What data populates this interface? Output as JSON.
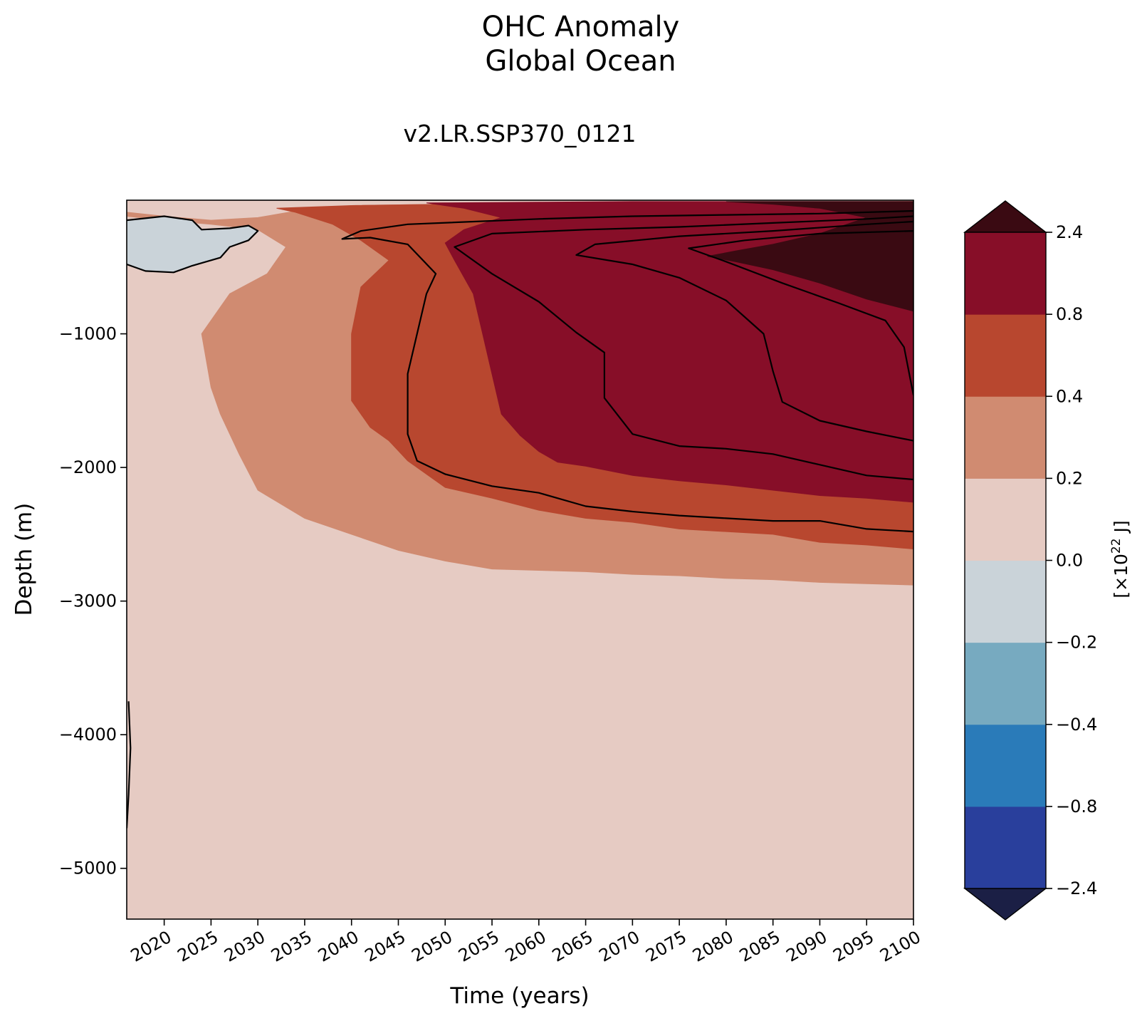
{
  "chart_data": {
    "type": "heatmap",
    "title": "OHC Anomaly",
    "title_line2": "Global Ocean",
    "subtitle": "v2.LR.SSP370_0121",
    "xlabel": "Time (years)",
    "ylabel": "Depth (m)",
    "xlim": [
      2016,
      2100
    ],
    "ylim": [
      -5380,
      0
    ],
    "x_ticks": [
      2020,
      2025,
      2030,
      2035,
      2040,
      2045,
      2050,
      2055,
      2060,
      2065,
      2070,
      2075,
      2080,
      2085,
      2090,
      2095,
      2100
    ],
    "y_ticks": [
      -1000,
      -2000,
      -3000,
      -4000,
      -5000
    ],
    "colorbar": {
      "label": "[×10",
      "label_exp": "22",
      "label_unit": " J]",
      "levels": [
        -2.4,
        -0.8,
        -0.4,
        -0.2,
        0.0,
        0.2,
        0.4,
        0.8,
        2.4
      ],
      "tick_labels": [
        "2.4",
        "0.8",
        "0.4",
        "0.2",
        "0.0",
        "−0.2",
        "−0.4",
        "−0.8",
        "−2.4"
      ],
      "colors": [
        "#1b1f45",
        "#293f9c",
        "#2a7bb9",
        "#77aac0",
        "#cad3d9",
        "#e6cbc3",
        "#d08b71",
        "#b8472f",
        "#870e28",
        "#3a0a12"
      ],
      "extend": "both"
    },
    "contour_levels": [
      0.0,
      0.8,
      2.4
    ],
    "regions": [
      {
        "level": "0.0 to 0.2",
        "color": "#e6cbc3",
        "boundary": [
          [
            2016,
            0
          ],
          [
            2100,
            0
          ],
          [
            2100,
            -5380
          ],
          [
            2016,
            -5380
          ]
        ]
      },
      {
        "level": "0.2 to 0.4",
        "color": "#d08b71",
        "boundary": [
          [
            2016,
            -90
          ],
          [
            2020,
            -120
          ],
          [
            2025,
            -150
          ],
          [
            2030,
            -130
          ],
          [
            2035,
            -70
          ],
          [
            2040,
            -40
          ],
          [
            2050,
            -30
          ],
          [
            2060,
            -20
          ],
          [
            2070,
            -20
          ],
          [
            2100,
            -10
          ],
          [
            2100,
            -2880
          ],
          [
            2095,
            -2870
          ],
          [
            2090,
            -2860
          ],
          [
            2085,
            -2840
          ],
          [
            2080,
            -2830
          ],
          [
            2075,
            -2810
          ],
          [
            2070,
            -2800
          ],
          [
            2065,
            -2780
          ],
          [
            2060,
            -2770
          ],
          [
            2055,
            -2760
          ],
          [
            2050,
            -2700
          ],
          [
            2045,
            -2620
          ],
          [
            2040,
            -2500
          ],
          [
            2035,
            -2380
          ],
          [
            2030,
            -2170
          ],
          [
            2028,
            -1900
          ],
          [
            2026,
            -1600
          ],
          [
            2025,
            -1400
          ],
          [
            2024,
            -1000
          ],
          [
            2027,
            -700
          ],
          [
            2031,
            -550
          ],
          [
            2033,
            -350
          ],
          [
            2030,
            -220
          ],
          [
            2025,
            -180
          ],
          [
            2020,
            -150
          ],
          [
            2016,
            -120
          ]
        ]
      },
      {
        "level": "0.4 to 0.8",
        "color": "#b8472f",
        "boundary": [
          [
            2032,
            -60
          ],
          [
            2040,
            -40
          ],
          [
            2050,
            -30
          ],
          [
            2060,
            -20
          ],
          [
            2070,
            -15
          ],
          [
            2100,
            -10
          ],
          [
            2100,
            -2610
          ],
          [
            2095,
            -2580
          ],
          [
            2090,
            -2560
          ],
          [
            2085,
            -2500
          ],
          [
            2080,
            -2480
          ],
          [
            2075,
            -2460
          ],
          [
            2070,
            -2410
          ],
          [
            2065,
            -2380
          ],
          [
            2060,
            -2320
          ],
          [
            2055,
            -2230
          ],
          [
            2050,
            -2150
          ],
          [
            2046,
            -1950
          ],
          [
            2044,
            -1800
          ],
          [
            2042,
            -1700
          ],
          [
            2040,
            -1500
          ],
          [
            2040,
            -1000
          ],
          [
            2041,
            -650
          ],
          [
            2044,
            -450
          ],
          [
            2041,
            -300
          ],
          [
            2038,
            -180
          ],
          [
            2034,
            -90
          ]
        ]
      },
      {
        "level": "0.8 to 2.4",
        "color": "#870e28",
        "boundary": [
          [
            2048,
            -20
          ],
          [
            2060,
            -15
          ],
          [
            2070,
            -10
          ],
          [
            2100,
            -10
          ],
          [
            2100,
            -2260
          ],
          [
            2095,
            -2230
          ],
          [
            2090,
            -2210
          ],
          [
            2085,
            -2170
          ],
          [
            2080,
            -2130
          ],
          [
            2075,
            -2100
          ],
          [
            2070,
            -2060
          ],
          [
            2065,
            -1990
          ],
          [
            2062,
            -1960
          ],
          [
            2060,
            -1880
          ],
          [
            2058,
            -1760
          ],
          [
            2056,
            -1600
          ],
          [
            2055,
            -1300
          ],
          [
            2054,
            -1000
          ],
          [
            2053,
            -700
          ],
          [
            2051,
            -450
          ],
          [
            2050,
            -320
          ],
          [
            2052,
            -220
          ],
          [
            2056,
            -130
          ],
          [
            2052,
            -60
          ]
        ]
      },
      {
        "level": "> 2.4",
        "color": "#3a0a12",
        "boundary": [
          [
            2080,
            -10
          ],
          [
            2100,
            -10
          ],
          [
            2100,
            -830
          ],
          [
            2095,
            -740
          ],
          [
            2090,
            -620
          ],
          [
            2085,
            -520
          ],
          [
            2081,
            -460
          ],
          [
            2078,
            -420
          ],
          [
            2081,
            -380
          ],
          [
            2085,
            -330
          ],
          [
            2090,
            -250
          ],
          [
            2095,
            -130
          ],
          [
            2090,
            -60
          ],
          [
            2085,
            -30
          ]
        ]
      },
      {
        "level": "-0.2 to 0.0",
        "color": "#cad3d9",
        "boundary": [
          [
            2016,
            -150
          ],
          [
            2020,
            -120
          ],
          [
            2023,
            -150
          ],
          [
            2024,
            -220
          ],
          [
            2027,
            -210
          ],
          [
            2029,
            -190
          ],
          [
            2030,
            -230
          ],
          [
            2029,
            -300
          ],
          [
            2027,
            -350
          ],
          [
            2026,
            -430
          ],
          [
            2023,
            -490
          ],
          [
            2021,
            -540
          ],
          [
            2018,
            -530
          ],
          [
            2016,
            -480
          ]
        ]
      }
    ],
    "contours": [
      {
        "level": 0.0,
        "points": [
          [
            2016,
            -480
          ],
          [
            2018,
            -530
          ],
          [
            2021,
            -540
          ],
          [
            2023,
            -490
          ],
          [
            2026,
            -430
          ],
          [
            2027,
            -350
          ],
          [
            2029,
            -300
          ],
          [
            2030,
            -230
          ],
          [
            2029,
            -190
          ],
          [
            2027,
            -210
          ],
          [
            2024,
            -220
          ],
          [
            2023,
            -150
          ],
          [
            2020,
            -120
          ],
          [
            2016,
            -150
          ]
        ]
      },
      {
        "level": 0.8,
        "points": [
          [
            2100,
            -2480
          ],
          [
            2095,
            -2460
          ],
          [
            2090,
            -2400
          ],
          [
            2085,
            -2400
          ],
          [
            2080,
            -2380
          ],
          [
            2075,
            -2360
          ],
          [
            2070,
            -2330
          ],
          [
            2065,
            -2290
          ],
          [
            2060,
            -2190
          ],
          [
            2055,
            -2140
          ],
          [
            2050,
            -2050
          ],
          [
            2047,
            -1950
          ],
          [
            2046,
            -1750
          ],
          [
            2046,
            -1300
          ],
          [
            2047,
            -1000
          ],
          [
            2048,
            -700
          ],
          [
            2049,
            -550
          ],
          [
            2046,
            -330
          ],
          [
            2042,
            -280
          ],
          [
            2039,
            -290
          ],
          [
            2041,
            -230
          ],
          [
            2046,
            -180
          ],
          [
            2060,
            -140
          ],
          [
            2070,
            -120
          ],
          [
            2080,
            -110
          ],
          [
            2090,
            -100
          ],
          [
            2100,
            -80
          ]
        ]
      },
      {
        "level": 0.8,
        "points": [
          [
            2100,
            -2090
          ],
          [
            2095,
            -2060
          ],
          [
            2090,
            -1980
          ],
          [
            2085,
            -1900
          ],
          [
            2080,
            -1860
          ],
          [
            2075,
            -1840
          ],
          [
            2070,
            -1750
          ],
          [
            2067,
            -1480
          ],
          [
            2067,
            -1140
          ],
          [
            2064,
            -990
          ],
          [
            2060,
            -760
          ],
          [
            2055,
            -550
          ],
          [
            2051,
            -350
          ],
          [
            2055,
            -250
          ],
          [
            2065,
            -220
          ],
          [
            2075,
            -200
          ],
          [
            2085,
            -170
          ],
          [
            2095,
            -140
          ],
          [
            2100,
            -120
          ]
        ]
      },
      {
        "level": 2.4,
        "points": [
          [
            2100,
            -1800
          ],
          [
            2095,
            -1730
          ],
          [
            2090,
            -1650
          ],
          [
            2086,
            -1510
          ],
          [
            2085,
            -1280
          ],
          [
            2084,
            -1000
          ],
          [
            2080,
            -750
          ],
          [
            2075,
            -580
          ],
          [
            2070,
            -480
          ],
          [
            2064,
            -410
          ],
          [
            2066,
            -330
          ],
          [
            2075,
            -270
          ],
          [
            2085,
            -230
          ],
          [
            2095,
            -180
          ],
          [
            2100,
            -160
          ]
        ]
      },
      {
        "level": 2.4,
        "points": [
          [
            2100,
            -1460
          ],
          [
            2099,
            -1100
          ],
          [
            2097,
            -900
          ],
          [
            2092,
            -770
          ],
          [
            2086,
            -620
          ],
          [
            2080,
            -460
          ],
          [
            2076,
            -360
          ],
          [
            2082,
            -300
          ],
          [
            2090,
            -250
          ],
          [
            2100,
            -230
          ]
        ]
      },
      {
        "level": 0.0,
        "points": [
          [
            2016.2,
            -3750
          ],
          [
            2016.4,
            -4100
          ],
          [
            2016.2,
            -4450
          ],
          [
            2016,
            -4700
          ]
        ]
      }
    ]
  }
}
